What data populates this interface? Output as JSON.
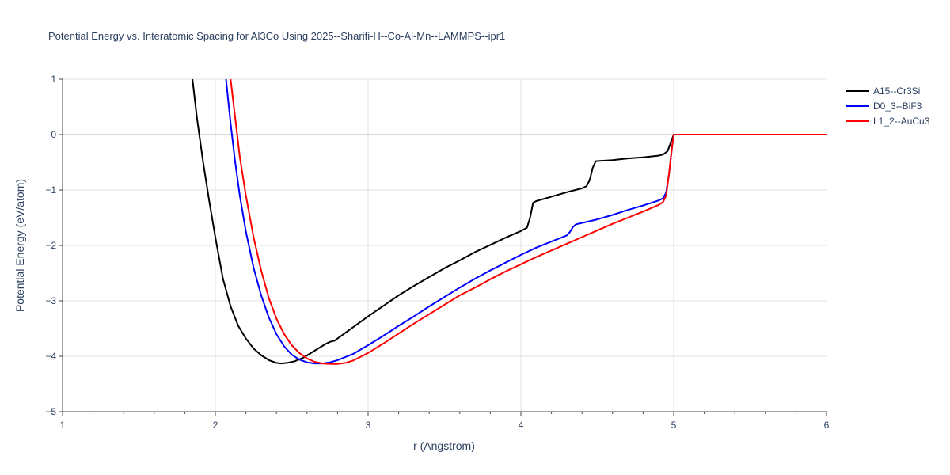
{
  "chart_data": {
    "type": "line",
    "title": "Potential Energy vs. Interatomic Spacing for Al3Co Using 2025--Sharifi-H--Co-Al-Mn--LAMMPS--ipr1",
    "xlabel": "r (Angstrom)",
    "ylabel": "Potential Energy (eV/atom)",
    "xlim": [
      1,
      6
    ],
    "ylim": [
      -5,
      1
    ],
    "x_ticks": [
      "1",
      "2",
      "3",
      "4",
      "5",
      "6"
    ],
    "y_ticks": [
      "1",
      "0",
      "−1",
      "−2",
      "−3",
      "−4",
      "−5"
    ],
    "x_tick_values": [
      1,
      2,
      3,
      4,
      5,
      6
    ],
    "y_tick_values": [
      1,
      0,
      -1,
      -2,
      -3,
      -4,
      -5
    ],
    "x_minor_ticks": [
      1.2,
      1.4,
      1.6,
      1.8,
      2.2,
      2.4,
      2.6,
      2.8,
      3.2,
      3.4,
      3.6,
      3.8,
      4.2,
      4.4,
      4.6,
      4.8,
      5.2,
      5.4,
      5.6,
      5.8
    ],
    "grid": true,
    "legend_position": "top-right",
    "series": [
      {
        "name": "A15--Cr3Si",
        "color": "#000000",
        "points": [
          [
            1.85,
            1.0
          ],
          [
            1.88,
            0.3
          ],
          [
            1.92,
            -0.5
          ],
          [
            1.96,
            -1.2
          ],
          [
            2.0,
            -1.85
          ],
          [
            2.05,
            -2.6
          ],
          [
            2.1,
            -3.1
          ],
          [
            2.15,
            -3.45
          ],
          [
            2.2,
            -3.68
          ],
          [
            2.25,
            -3.86
          ],
          [
            2.3,
            -3.98
          ],
          [
            2.35,
            -4.07
          ],
          [
            2.4,
            -4.12
          ],
          [
            2.43,
            -4.13
          ],
          [
            2.47,
            -4.12
          ],
          [
            2.52,
            -4.09
          ],
          [
            2.58,
            -4.02
          ],
          [
            2.65,
            -3.9
          ],
          [
            2.72,
            -3.78
          ],
          [
            2.75,
            -3.74
          ],
          [
            2.78,
            -3.72
          ],
          [
            2.8,
            -3.68
          ],
          [
            2.9,
            -3.48
          ],
          [
            3.0,
            -3.28
          ],
          [
            3.1,
            -3.09
          ],
          [
            3.2,
            -2.9
          ],
          [
            3.3,
            -2.73
          ],
          [
            3.4,
            -2.57
          ],
          [
            3.5,
            -2.41
          ],
          [
            3.6,
            -2.27
          ],
          [
            3.7,
            -2.12
          ],
          [
            3.8,
            -1.99
          ],
          [
            3.9,
            -1.86
          ],
          [
            4.0,
            -1.74
          ],
          [
            4.04,
            -1.68
          ],
          [
            4.06,
            -1.5
          ],
          [
            4.08,
            -1.23
          ],
          [
            4.1,
            -1.2
          ],
          [
            4.2,
            -1.12
          ],
          [
            4.3,
            -1.04
          ],
          [
            4.4,
            -0.97
          ],
          [
            4.43,
            -0.93
          ],
          [
            4.45,
            -0.82
          ],
          [
            4.47,
            -0.6
          ],
          [
            4.49,
            -0.48
          ],
          [
            4.6,
            -0.46
          ],
          [
            4.7,
            -0.43
          ],
          [
            4.8,
            -0.41
          ],
          [
            4.9,
            -0.38
          ],
          [
            4.93,
            -0.36
          ],
          [
            4.96,
            -0.3
          ],
          [
            4.98,
            -0.15
          ],
          [
            5.0,
            0.0
          ],
          [
            6.0,
            0.0
          ]
        ]
      },
      {
        "name": "D0_3--BiF3",
        "color": "#0000ff",
        "points": [
          [
            2.07,
            1.0
          ],
          [
            2.1,
            0.2
          ],
          [
            2.13,
            -0.5
          ],
          [
            2.16,
            -1.1
          ],
          [
            2.2,
            -1.75
          ],
          [
            2.25,
            -2.4
          ],
          [
            2.3,
            -2.9
          ],
          [
            2.35,
            -3.3
          ],
          [
            2.4,
            -3.6
          ],
          [
            2.45,
            -3.82
          ],
          [
            2.5,
            -3.97
          ],
          [
            2.55,
            -4.06
          ],
          [
            2.6,
            -4.11
          ],
          [
            2.65,
            -4.13
          ],
          [
            2.7,
            -4.13
          ],
          [
            2.75,
            -4.11
          ],
          [
            2.8,
            -4.07
          ],
          [
            2.9,
            -3.96
          ],
          [
            3.0,
            -3.8
          ],
          [
            3.1,
            -3.63
          ],
          [
            3.2,
            -3.45
          ],
          [
            3.3,
            -3.28
          ],
          [
            3.4,
            -3.1
          ],
          [
            3.5,
            -2.93
          ],
          [
            3.6,
            -2.76
          ],
          [
            3.7,
            -2.6
          ],
          [
            3.8,
            -2.45
          ],
          [
            3.9,
            -2.31
          ],
          [
            4.0,
            -2.17
          ],
          [
            4.1,
            -2.04
          ],
          [
            4.2,
            -1.93
          ],
          [
            4.3,
            -1.82
          ],
          [
            4.32,
            -1.76
          ],
          [
            4.34,
            -1.67
          ],
          [
            4.36,
            -1.62
          ],
          [
            4.5,
            -1.53
          ],
          [
            4.6,
            -1.45
          ],
          [
            4.7,
            -1.36
          ],
          [
            4.8,
            -1.28
          ],
          [
            4.9,
            -1.19
          ],
          [
            4.93,
            -1.15
          ],
          [
            4.95,
            -1.05
          ],
          [
            4.97,
            -0.7
          ],
          [
            4.99,
            -0.2
          ],
          [
            5.0,
            0.0
          ],
          [
            6.0,
            0.0
          ]
        ]
      },
      {
        "name": "L1_2--AuCu3",
        "color": "#ff0000",
        "points": [
          [
            2.1,
            1.0
          ],
          [
            2.13,
            0.3
          ],
          [
            2.16,
            -0.4
          ],
          [
            2.2,
            -1.1
          ],
          [
            2.25,
            -1.85
          ],
          [
            2.3,
            -2.45
          ],
          [
            2.35,
            -2.95
          ],
          [
            2.4,
            -3.32
          ],
          [
            2.45,
            -3.6
          ],
          [
            2.5,
            -3.8
          ],
          [
            2.55,
            -3.94
          ],
          [
            2.6,
            -4.04
          ],
          [
            2.65,
            -4.1
          ],
          [
            2.7,
            -4.13
          ],
          [
            2.75,
            -4.14
          ],
          [
            2.8,
            -4.14
          ],
          [
            2.85,
            -4.12
          ],
          [
            2.9,
            -4.08
          ],
          [
            3.0,
            -3.94
          ],
          [
            3.1,
            -3.77
          ],
          [
            3.2,
            -3.59
          ],
          [
            3.3,
            -3.41
          ],
          [
            3.4,
            -3.24
          ],
          [
            3.5,
            -3.07
          ],
          [
            3.6,
            -2.9
          ],
          [
            3.7,
            -2.76
          ],
          [
            3.8,
            -2.61
          ],
          [
            3.9,
            -2.47
          ],
          [
            4.0,
            -2.34
          ],
          [
            4.1,
            -2.21
          ],
          [
            4.2,
            -2.09
          ],
          [
            4.3,
            -1.97
          ],
          [
            4.4,
            -1.85
          ],
          [
            4.5,
            -1.73
          ],
          [
            4.6,
            -1.61
          ],
          [
            4.7,
            -1.5
          ],
          [
            4.8,
            -1.39
          ],
          [
            4.9,
            -1.27
          ],
          [
            4.93,
            -1.22
          ],
          [
            4.95,
            -1.1
          ],
          [
            4.97,
            -0.7
          ],
          [
            4.99,
            -0.2
          ],
          [
            5.0,
            0.0
          ],
          [
            6.0,
            0.0
          ]
        ]
      }
    ]
  }
}
